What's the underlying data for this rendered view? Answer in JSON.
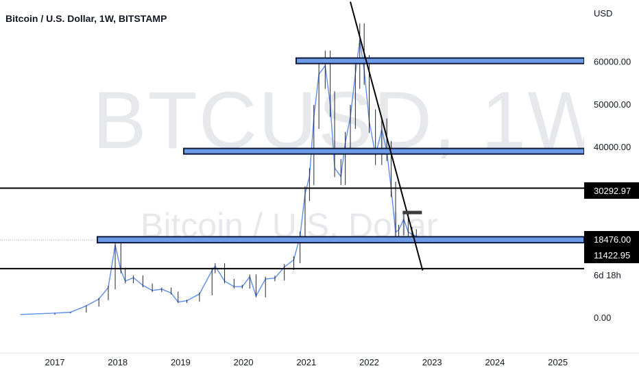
{
  "header": {
    "title": "Bitcoin / U.S. Dollar, 1W, BITSTAMP",
    "currency": "USD"
  },
  "watermark": {
    "symbol": "BTCUSD, 1W",
    "name": "Bitcoin / U.S. Dollar"
  },
  "price_scale": {
    "ticks": [
      "60000.00",
      "50000.00",
      "40000.00",
      "0.00"
    ],
    "badges": [
      {
        "label": "30292.97",
        "style": "dark"
      },
      {
        "label": "18476.00",
        "style": "dark"
      },
      {
        "label": "11422.95",
        "style": "dark"
      },
      {
        "label": "6d 18h",
        "style": "light"
      }
    ]
  },
  "colors": {
    "candle_line": "#5b8def",
    "zone_fill": "#6d9be8",
    "zone_border": "#0d1a3a",
    "line": "#000000",
    "badge_dark": "#000000",
    "badge_light": "#ffffff"
  },
  "chart_data": {
    "type": "line",
    "title": "Bitcoin / U.S. Dollar, 1W, BITSTAMP",
    "xlabel": "",
    "ylabel": "USD",
    "ylim": [
      0,
      70000
    ],
    "x_ticks": [
      "2017",
      "2018",
      "2019",
      "2020",
      "2021",
      "2022",
      "2023",
      "2024",
      "2025"
    ],
    "series": [
      {
        "values_x": [
          2016.45,
          2017.0,
          2017.25,
          2017.5,
          2017.7,
          2017.85,
          2017.96,
          2018.05,
          2018.12,
          2018.25,
          2018.4,
          2018.55,
          2018.7,
          2018.85,
          2018.96,
          2019.1,
          2019.3,
          2019.5,
          2019.55,
          2019.7,
          2019.85,
          2019.98,
          2020.1,
          2020.2,
          2020.35,
          2020.5,
          2020.65,
          2020.8,
          2020.9,
          2020.98,
          2021.05,
          2021.12,
          2021.2,
          2021.3,
          2021.38,
          2021.45,
          2021.55,
          2021.62,
          2021.7,
          2021.78,
          2021.85,
          2021.92,
          2022.0,
          2022.1,
          2022.2,
          2022.28,
          2022.35,
          2022.42,
          2022.47,
          2022.55,
          2022.62,
          2022.68,
          2022.75
        ],
        "values_y": [
          670,
          1000,
          1200,
          2700,
          4300,
          7000,
          17000,
          11000,
          8500,
          9300,
          7500,
          6300,
          6600,
          5700,
          3600,
          3900,
          5500,
          11000,
          12000,
          8500,
          7200,
          7200,
          9500,
          5000,
          9000,
          9200,
          11800,
          13500,
          19000,
          29000,
          33000,
          47000,
          57000,
          59000,
          50000,
          35000,
          33000,
          41000,
          47000,
          57000,
          65000,
          58000,
          46000,
          38000,
          44000,
          39000,
          30000,
          20000,
          20500,
          23000,
          20000,
          19500,
          19000
        ]
      }
    ],
    "horizontal_zones": [
      {
        "from": 59500,
        "to": 60800
      },
      {
        "from": 38300,
        "to": 39600
      },
      {
        "from": 17500,
        "to": 18900
      }
    ],
    "horizontal_lines": [
      30292.97,
      11422.95
    ],
    "trendline": {
      "x": [
        2021.7,
        2022.85
      ],
      "y": [
        74000,
        11000
      ]
    },
    "small_marker": {
      "x": 2022.62,
      "y": 24500
    }
  }
}
